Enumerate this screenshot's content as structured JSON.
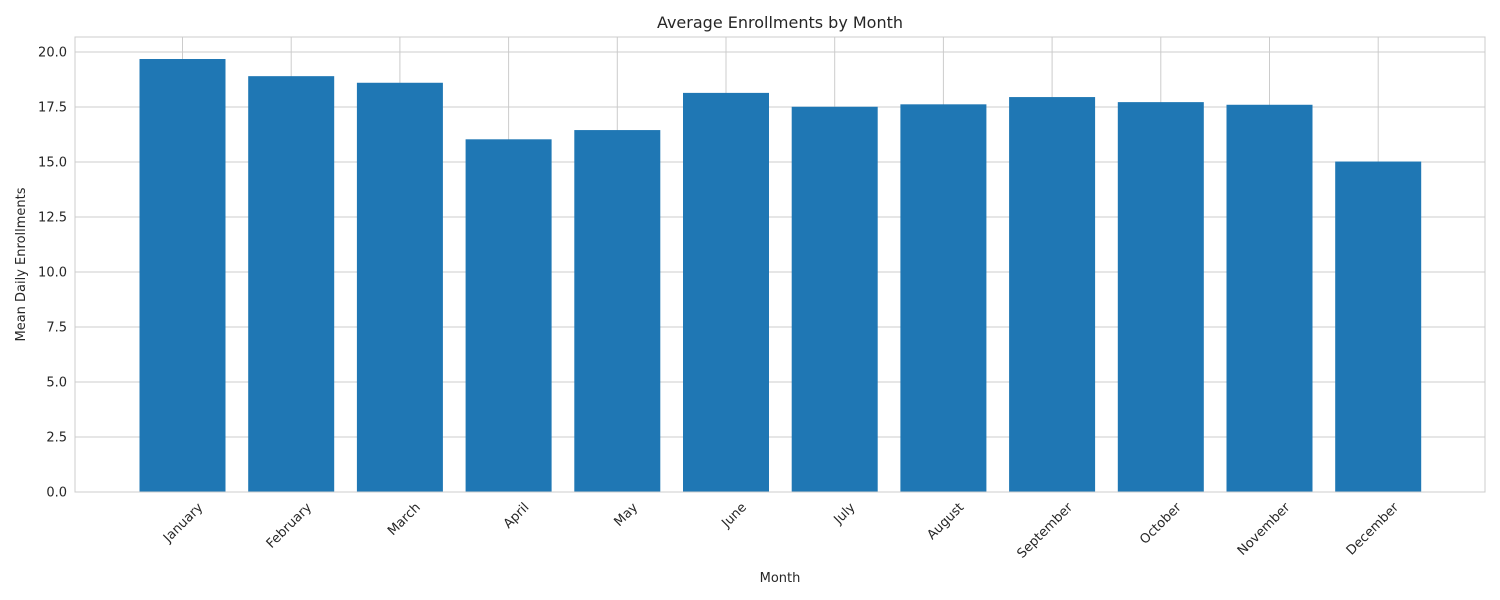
{
  "chart_data": {
    "type": "bar",
    "title": "Average Enrollments by Month",
    "xlabel": "Month",
    "ylabel": "Mean Daily Enrollments",
    "categories": [
      "January",
      "February",
      "March",
      "April",
      "May",
      "June",
      "July",
      "August",
      "September",
      "October",
      "November",
      "December"
    ],
    "values": [
      19.68,
      18.9,
      18.6,
      16.03,
      16.45,
      18.14,
      17.51,
      17.62,
      17.95,
      17.72,
      17.6,
      15.02
    ],
    "ylim": [
      0,
      20.68
    ],
    "yticks": [
      "0.0",
      "2.5",
      "5.0",
      "7.5",
      "10.0",
      "12.5",
      "15.0",
      "17.5",
      "20.0"
    ],
    "grid": true,
    "colors": {
      "bar": "#1f77b4",
      "grid": "#cccccc"
    }
  }
}
